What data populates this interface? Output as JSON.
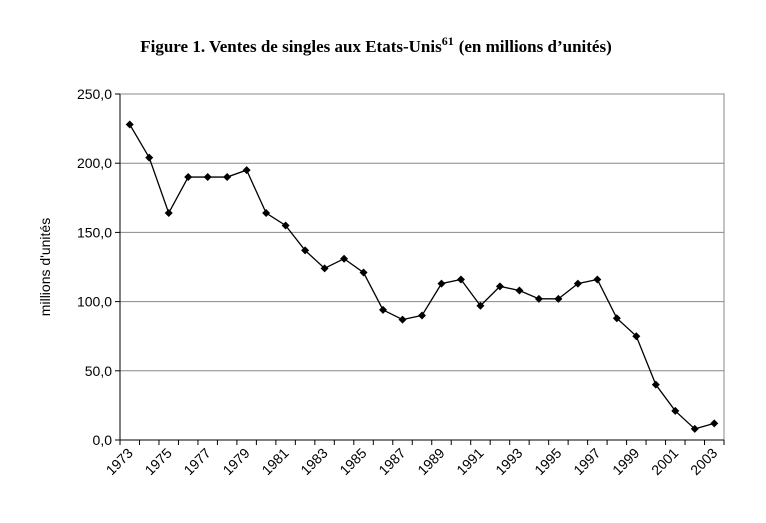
{
  "chart_data": {
    "type": "line",
    "title": "Figure 1. Ventes de singles aux Etats-Unis",
    "title_superscript": "61",
    "title_suffix": "(en millions d’unités)",
    "y_label": "millions d'unités",
    "categories": [
      "1973",
      null,
      "1975",
      null,
      "1977",
      null,
      "1979",
      null,
      "1981",
      null,
      "1983",
      null,
      "1985",
      null,
      "1987",
      null,
      "1989",
      null,
      "1991",
      null,
      "1993",
      null,
      "1995",
      null,
      "1997",
      null,
      "1999",
      null,
      "2001",
      null,
      "2003"
    ],
    "values": [
      228,
      204,
      164,
      190,
      190,
      190,
      195,
      164,
      155,
      137,
      124,
      131,
      121,
      94,
      87,
      90,
      113,
      116,
      97,
      111,
      108,
      102,
      102,
      113,
      116,
      88,
      75,
      40,
      21,
      8,
      12
    ],
    "color": "#000000",
    "ylim": [
      0,
      250
    ],
    "yticks": [
      {
        "value": 0,
        "label": "0,0"
      },
      {
        "value": 50,
        "label": "50,0"
      },
      {
        "value": 100,
        "label": "100,0"
      },
      {
        "value": 150,
        "label": "150,0"
      },
      {
        "value": 200,
        "label": "200,0"
      },
      {
        "value": 250,
        "label": "250,0"
      }
    ],
    "grid": true
  }
}
